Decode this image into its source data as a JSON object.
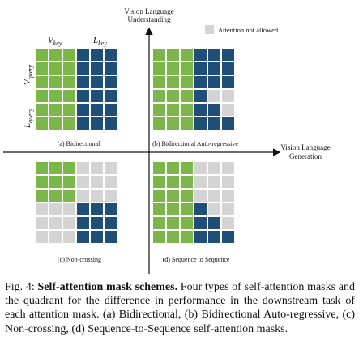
{
  "axes": {
    "vertical_label_line1": "Vision Language",
    "vertical_label_line2": "Understanding",
    "horizontal_label_line1": "Vision Language",
    "horizontal_label_line2": "Generation"
  },
  "legend": {
    "label": "Attention not allowed",
    "color": "#d4d4d4"
  },
  "colors": {
    "vision": "#7ab648",
    "language": "#1f4e79",
    "blocked": "#d4d4d4"
  },
  "header_labels": {
    "v_key": "V",
    "v_key_sub": "key",
    "l_key": "L",
    "l_key_sub": "key",
    "v_query": "V",
    "v_query_sub": "query",
    "l_query": "L",
    "l_query_sub": "query"
  },
  "panels": [
    {
      "id": "a",
      "label": "(a) Bidirectional",
      "grid": [
        "GGGBBB",
        "GGGBBB",
        "GGGBBB",
        "GGGBBB",
        "GGGBBB",
        "GGGBBB"
      ]
    },
    {
      "id": "b",
      "label": "(b) Bidirectional Auto-regressive",
      "grid": [
        "GGGBBB",
        "GGGBBB",
        "GGGBBB",
        "GGGBXX",
        "GGGBBX",
        "GGGBBB"
      ]
    },
    {
      "id": "c",
      "label": "(c) Non-crossing",
      "grid": [
        "GGGXXX",
        "GGGXXX",
        "GGGXXX",
        "XXXBBB",
        "XXXBBB",
        "XXXBBB"
      ]
    },
    {
      "id": "d",
      "label": "(d) Sequence to Sequence",
      "grid": [
        "GGGXXX",
        "GGGXXX",
        "GGGXXX",
        "GGGBXX",
        "GGGBBX",
        "GGGBBB"
      ]
    }
  ],
  "caption": {
    "prefix": "Fig. 4: ",
    "title": "Self-attention mask schemes.",
    "body": " Four types of self-attention masks and the quadrant for the difference in performance in the downstream task of each attention mask. (a) Bidirectional, (b) Bidirectional Auto-regressive, (c) Non-crossing, (d) Sequence-to-Sequence self-attention masks."
  }
}
